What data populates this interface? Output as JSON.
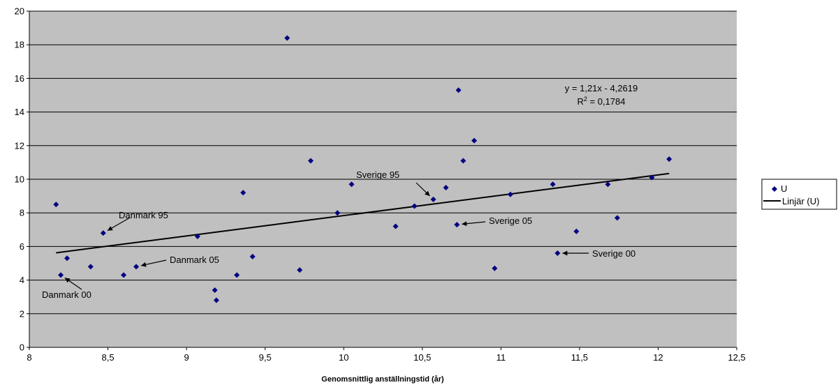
{
  "chart_data": {
    "type": "scatter",
    "title": "",
    "xlabel": "Genomsnittlig anställningstid (år)",
    "ylabel": "",
    "xlim": [
      8,
      12.5
    ],
    "ylim": [
      0,
      20
    ],
    "x_ticks": [
      "8",
      "8,5",
      "9",
      "9,5",
      "10",
      "10,5",
      "11",
      "11,5",
      "12",
      "12,5"
    ],
    "y_ticks": [
      "0",
      "2",
      "4",
      "6",
      "8",
      "10",
      "12",
      "14",
      "16",
      "18",
      "20"
    ],
    "grid": "horizontal",
    "plot_background": "#c0c0c0",
    "marker_color": "#000080",
    "series": [
      {
        "name": "U",
        "points": [
          [
            8.17,
            8.5
          ],
          [
            8.2,
            4.3
          ],
          [
            8.24,
            5.3
          ],
          [
            8.39,
            4.8
          ],
          [
            8.47,
            6.8
          ],
          [
            8.6,
            4.3
          ],
          [
            8.68,
            4.8
          ],
          [
            9.07,
            6.6
          ],
          [
            9.18,
            3.4
          ],
          [
            9.19,
            2.8
          ],
          [
            9.32,
            4.3
          ],
          [
            9.36,
            9.2
          ],
          [
            9.42,
            5.4
          ],
          [
            9.64,
            18.4
          ],
          [
            9.72,
            4.6
          ],
          [
            9.79,
            11.1
          ],
          [
            9.96,
            8.0
          ],
          [
            10.05,
            9.7
          ],
          [
            10.33,
            7.2
          ],
          [
            10.45,
            8.4
          ],
          [
            10.57,
            8.8
          ],
          [
            10.65,
            9.5
          ],
          [
            10.72,
            7.3
          ],
          [
            10.73,
            15.3
          ],
          [
            10.76,
            11.1
          ],
          [
            10.83,
            12.3
          ],
          [
            10.96,
            4.7
          ],
          [
            11.06,
            9.1
          ],
          [
            11.33,
            9.7
          ],
          [
            11.36,
            5.6
          ],
          [
            11.48,
            6.9
          ],
          [
            11.68,
            9.7
          ],
          [
            11.74,
            7.7
          ],
          [
            11.96,
            10.1
          ],
          [
            12.07,
            11.2
          ]
        ]
      }
    ],
    "trendline": {
      "name": "Linjär (U)",
      "slope": 1.21,
      "intercept": -4.2619,
      "x_range": [
        8.17,
        12.07
      ],
      "equation": "y = 1,21x - 4,2619",
      "r2_prefix": "R",
      "r2_sup": "2",
      "r2_value": " = 0,1784"
    },
    "annotations": [
      {
        "label": "Danmark 95",
        "point": [
          8.47,
          6.8
        ]
      },
      {
        "label": "Danmark 00",
        "point": [
          8.2,
          4.3
        ]
      },
      {
        "label": "Danmark 05",
        "point": [
          8.68,
          4.8
        ]
      },
      {
        "label": "Sverige 95",
        "point": [
          10.57,
          8.8
        ]
      },
      {
        "label": "Sverige 05",
        "point": [
          10.72,
          7.3
        ]
      },
      {
        "label": "Sverige 00",
        "point": [
          11.36,
          5.6
        ]
      }
    ],
    "legend": {
      "placement": "right",
      "items": [
        {
          "label": "U",
          "symbol": "diamond"
        },
        {
          "label": "Linjär (U)",
          "symbol": "line"
        }
      ]
    }
  }
}
